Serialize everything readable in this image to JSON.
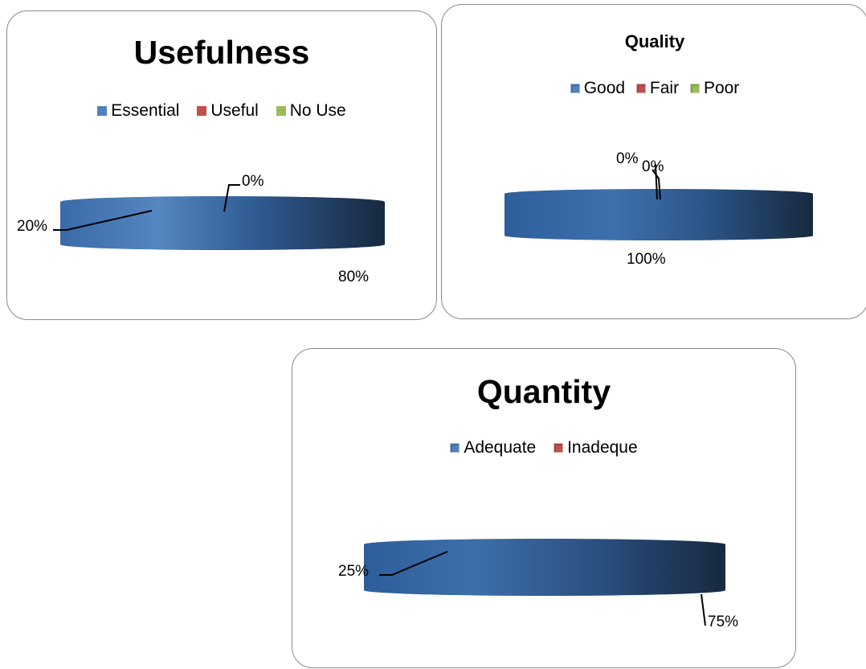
{
  "colors": {
    "blue": "#4f81bd",
    "red": "#c0504d",
    "green": "#9bbb59",
    "disk_dark": "#17293f",
    "border": "#8a8a8a"
  },
  "chart_data": [
    {
      "type": "pie",
      "style": "3d-flat-disk",
      "title": "Usefulness",
      "legend": "top",
      "labels": [
        "Essential",
        "Useful",
        "No Use"
      ],
      "values": [
        80,
        20,
        0
      ],
      "data_labels": [
        "80%",
        "20%",
        "0%"
      ]
    },
    {
      "type": "pie",
      "style": "3d-flat-disk",
      "title": "Quality",
      "legend": "top",
      "labels": [
        "Good",
        "Fair",
        "Poor"
      ],
      "values": [
        100,
        0,
        0
      ],
      "data_labels": [
        "100%",
        "0%",
        "0%"
      ]
    },
    {
      "type": "pie",
      "style": "3d-flat-disk",
      "title": "Quantity",
      "legend": "top",
      "labels": [
        "Adequate",
        "Inadeque"
      ],
      "values": [
        75,
        25
      ],
      "data_labels": [
        "75%",
        "25%"
      ]
    }
  ]
}
